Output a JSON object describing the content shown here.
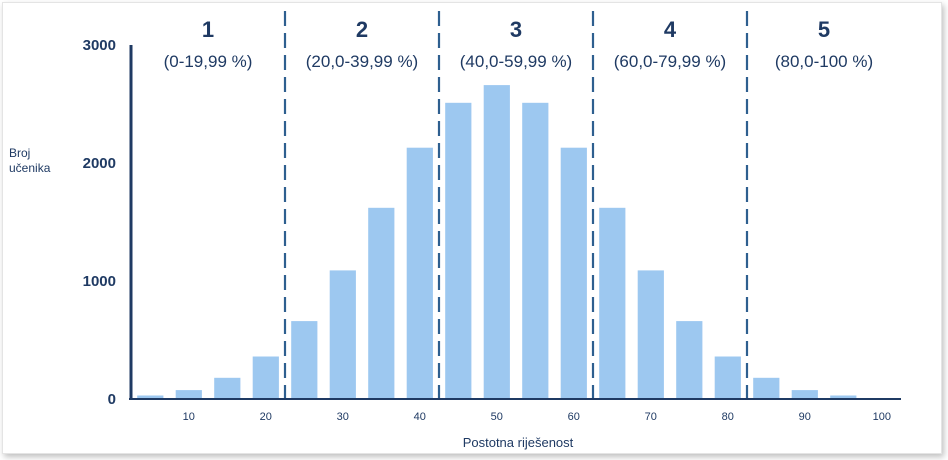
{
  "chart_data": {
    "type": "bar",
    "title": "",
    "xlabel": "Postotna riješenost",
    "ylabel_lines": [
      "Broj",
      "učenika"
    ],
    "ylim": [
      0,
      3000
    ],
    "xlim": [
      2.5,
      102.5
    ],
    "yticks": [
      0,
      1000,
      2000,
      3000
    ],
    "xticks": [
      10,
      20,
      30,
      40,
      50,
      60,
      70,
      80,
      90,
      100
    ],
    "grid": false,
    "bar_color": "#9dc8f0",
    "axis_color": "#1f3a63",
    "boundary_color": "#2e5f8f",
    "bars": [
      {
        "x": 5,
        "value": 30
      },
      {
        "x": 10,
        "value": 75
      },
      {
        "x": 15,
        "value": 180
      },
      {
        "x": 20,
        "value": 360
      },
      {
        "x": 25,
        "value": 660
      },
      {
        "x": 30,
        "value": 1090
      },
      {
        "x": 35,
        "value": 1620
      },
      {
        "x": 40,
        "value": 2130
      },
      {
        "x": 45,
        "value": 2510
      },
      {
        "x": 50,
        "value": 2660
      },
      {
        "x": 55,
        "value": 2510
      },
      {
        "x": 60,
        "value": 2130
      },
      {
        "x": 65,
        "value": 1620
      },
      {
        "x": 70,
        "value": 1090
      },
      {
        "x": 75,
        "value": 660
      },
      {
        "x": 80,
        "value": 360
      },
      {
        "x": 85,
        "value": 180
      },
      {
        "x": 90,
        "value": 75
      },
      {
        "x": 95,
        "value": 30
      }
    ],
    "boundaries": [
      22.5,
      42.5,
      62.5,
      82.5
    ],
    "grades": [
      {
        "number": "1",
        "range": "(0-19,99 %)",
        "x_from": 2.5,
        "x_to": 22.5
      },
      {
        "number": "2",
        "range": "(20,0-39,99 %)",
        "x_from": 22.5,
        "x_to": 42.5
      },
      {
        "number": "3",
        "range": "(40,0-59,99 %)",
        "x_from": 42.5,
        "x_to": 62.5
      },
      {
        "number": "4",
        "range": "(60,0-79,99 %)",
        "x_from": 62.5,
        "x_to": 82.5
      },
      {
        "number": "5",
        "range": "(80,0-100 %)",
        "x_from": 82.5,
        "x_to": 102.5
      }
    ]
  }
}
